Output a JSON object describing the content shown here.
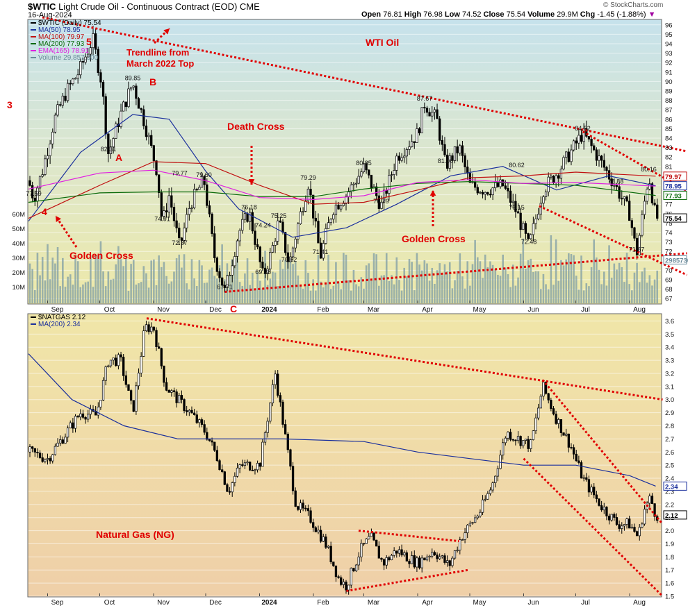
{
  "header": {
    "symbol": "$WTIC",
    "description": "Light Crude Oil - Continuous Contract (EOD)",
    "exchange": "CME",
    "date": "16-Aug-2024",
    "open_label": "Open",
    "open": "76.81",
    "high_label": "High",
    "high": "76.98",
    "low_label": "Low",
    "low": "74.52",
    "close_label": "Close",
    "close": "75.54",
    "volume_label": "Volume",
    "volume": "29.9M",
    "chg_label": "Chg",
    "chg": "-1.45 (-1.88%)",
    "watermark": "© StockCharts.com"
  },
  "top_legend": [
    {
      "label": "$WTIC (Daily) 75.54",
      "color": "#000000"
    },
    {
      "label": "MA(50) 78.95",
      "color": "#1a2f9c"
    },
    {
      "label": "MA(100) 79.97",
      "color": "#c01010"
    },
    {
      "label": "MA(200) 77.93",
      "color": "#0a6a0a"
    },
    {
      "label": "EMA(165) 78.91",
      "color": "#e020e0"
    },
    {
      "label": "Volume 29,857,300",
      "color": "#6a8a9a"
    }
  ],
  "bottom_legend": [
    {
      "label": "$NATGAS 2.12",
      "color": "#000000"
    },
    {
      "label": "MA(200) 2.34",
      "color": "#1a2f9c"
    }
  ],
  "annotations": {
    "wti_title": "WTI Oil",
    "trendline": "Trendline from\nMarch 2022 Top",
    "death_cross": "Death Cross",
    "golden_cross_1": "Golden Cross",
    "golden_cross_2": "Golden Cross",
    "wave_3": "3",
    "wave_4": "4",
    "wave_5": "5",
    "wave_a": "A",
    "wave_b": "B",
    "wave_c": "C",
    "natgas_title": "Natural Gas (NG)"
  },
  "chart_data": [
    {
      "type": "candlestick",
      "title": "$WTIC Light Crude Oil - Continuous Contract (EOD)",
      "x_labels": [
        "Sep",
        "Oct",
        "Nov",
        "Dec",
        "2024",
        "Feb",
        "Mar",
        "Apr",
        "May",
        "Jun",
        "Jul",
        "Aug"
      ],
      "ylim": [
        66.5,
        96.5
      ],
      "y_ticks": [
        67,
        68,
        69,
        70,
        71,
        72,
        73,
        74,
        75,
        76,
        77,
        78,
        79,
        80,
        81,
        82,
        83,
        84,
        85,
        86,
        87,
        88,
        89,
        90,
        91,
        92,
        93,
        94,
        95,
        96
      ],
      "volume_ticks": [
        "10M",
        "20M",
        "30M",
        "40M",
        "50M",
        "60M"
      ],
      "last_price": 75.54,
      "right_tags": [
        {
          "label": "79.97",
          "value": 79.97,
          "color": "#c01010"
        },
        {
          "label": "78.95",
          "value": 78.95,
          "color": "#1a2f9c"
        },
        {
          "label": "77.93",
          "value": 77.93,
          "color": "#0a6a0a"
        },
        {
          "label": "75.54",
          "value": 75.54,
          "color": "#000000"
        },
        {
          "label": "29857300",
          "value": 71.1,
          "color": "#6a8a9a"
        }
      ],
      "price_labels": [
        {
          "label": "77.59",
          "date": "2023-08-24",
          "value": 77.59
        },
        {
          "label": "89.85",
          "date": "2023-10-20",
          "value": 89.85
        },
        {
          "label": "82.31",
          "date": "2023-10-06",
          "value": 82.31
        },
        {
          "label": "79.77",
          "date": "2023-11-16",
          "value": 79.77
        },
        {
          "label": "79.60",
          "date": "2023-11-30",
          "value": 79.6
        },
        {
          "label": "74.91",
          "date": "2023-11-06",
          "value": 74.91
        },
        {
          "label": "72.37",
          "date": "2023-11-16",
          "value": 72.37
        },
        {
          "label": "76.18",
          "date": "2023-12-26",
          "value": 76.18
        },
        {
          "label": "74.24",
          "date": "2024-01-03",
          "value": 74.24
        },
        {
          "label": "75.25",
          "date": "2024-01-12",
          "value": 75.25
        },
        {
          "label": "69.28",
          "date": "2024-01-03",
          "value": 69.28
        },
        {
          "label": "70.62",
          "date": "2024-01-18",
          "value": 70.62
        },
        {
          "label": "67.71",
          "date": "2023-12-12",
          "value": 67.71
        },
        {
          "label": "79.29",
          "date": "2024-01-29",
          "value": 79.29
        },
        {
          "label": "71.41",
          "date": "2024-02-05",
          "value": 71.41
        },
        {
          "label": "80.85",
          "date": "2024-03-01",
          "value": 80.85
        },
        {
          "label": "76.79",
          "date": "2024-03-11",
          "value": 76.79
        },
        {
          "label": "87.67",
          "date": "2024-04-05",
          "value": 87.67
        },
        {
          "label": "81.06",
          "date": "2024-04-17",
          "value": 81.06
        },
        {
          "label": "80.62",
          "date": "2024-05-28",
          "value": 80.62
        },
        {
          "label": "76.15",
          "date": "2024-05-28",
          "value": 76.15
        },
        {
          "label": "72.48",
          "date": "2024-06-04",
          "value": 72.48
        },
        {
          "label": "84.52",
          "date": "2024-07-05",
          "value": 84.52
        },
        {
          "label": "78.88",
          "date": "2024-07-24",
          "value": 78.88
        },
        {
          "label": "80.16",
          "date": "2024-08-12",
          "value": 80.16
        },
        {
          "label": "71.67",
          "date": "2024-08-05",
          "value": 71.67
        }
      ],
      "path_points": [
        [
          "2023-08-21",
          79.5
        ],
        [
          "2023-08-24",
          77.59
        ],
        [
          "2023-08-29",
          80.5
        ],
        [
          "2023-09-05",
          86.0
        ],
        [
          "2023-09-12",
          89.0
        ],
        [
          "2023-09-19",
          91.0
        ],
        [
          "2023-09-27",
          94.5
        ],
        [
          "2023-10-02",
          90.0
        ],
        [
          "2023-10-06",
          82.31
        ],
        [
          "2023-10-13",
          86.5
        ],
        [
          "2023-10-20",
          89.85
        ],
        [
          "2023-10-27",
          85.5
        ],
        [
          "2023-11-03",
          80.5
        ],
        [
          "2023-11-06",
          74.91
        ],
        [
          "2023-11-10",
          78.0
        ],
        [
          "2023-11-16",
          72.37
        ],
        [
          "2023-11-22",
          77.0
        ],
        [
          "2023-11-30",
          79.6
        ],
        [
          "2023-12-06",
          71.5
        ],
        [
          "2023-12-12",
          67.71
        ],
        [
          "2023-12-20",
          74.0
        ],
        [
          "2023-12-26",
          76.18
        ],
        [
          "2024-01-03",
          69.28
        ],
        [
          "2024-01-08",
          72.0
        ],
        [
          "2024-01-12",
          75.25
        ],
        [
          "2024-01-18",
          70.62
        ],
        [
          "2024-01-24",
          75.5
        ],
        [
          "2024-01-29",
          79.29
        ],
        [
          "2024-02-05",
          71.41
        ],
        [
          "2024-02-12",
          76.5
        ],
        [
          "2024-02-20",
          78.0
        ],
        [
          "2024-03-01",
          80.85
        ],
        [
          "2024-03-11",
          76.79
        ],
        [
          "2024-03-20",
          82.0
        ],
        [
          "2024-04-01",
          84.5
        ],
        [
          "2024-04-05",
          87.67
        ],
        [
          "2024-04-12",
          86.0
        ],
        [
          "2024-04-17",
          81.06
        ],
        [
          "2024-04-25",
          83.0
        ],
        [
          "2024-05-01",
          79.0
        ],
        [
          "2024-05-10",
          78.5
        ],
        [
          "2024-05-20",
          79.0
        ],
        [
          "2024-05-28",
          76.15
        ],
        [
          "2024-06-04",
          72.48
        ],
        [
          "2024-06-12",
          78.5
        ],
        [
          "2024-06-21",
          80.5
        ],
        [
          "2024-07-05",
          84.52
        ],
        [
          "2024-07-12",
          82.5
        ],
        [
          "2024-07-24",
          78.88
        ],
        [
          "2024-08-01",
          76.0
        ],
        [
          "2024-08-05",
          71.67
        ],
        [
          "2024-08-09",
          76.5
        ],
        [
          "2024-08-12",
          80.16
        ],
        [
          "2024-08-16",
          75.54
        ]
      ],
      "moving_averages": {
        "MA50": [
          [
            "2023-08-21",
            75.2
          ],
          [
            "2023-09-20",
            82.5
          ],
          [
            "2023-10-20",
            86.5
          ],
          [
            "2023-11-10",
            86.0
          ],
          [
            "2023-12-01",
            80.5
          ],
          [
            "2023-12-20",
            76.5
          ],
          [
            "2024-01-20",
            73.5
          ],
          [
            "2024-02-20",
            74.5
          ],
          [
            "2024-03-20",
            77.0
          ],
          [
            "2024-04-20",
            80.0
          ],
          [
            "2024-05-20",
            81.0
          ],
          [
            "2024-06-20",
            78.5
          ],
          [
            "2024-07-20",
            80.0
          ],
          [
            "2024-08-16",
            78.95
          ]
        ],
        "MA100": [
          [
            "2023-08-21",
            75.5
          ],
          [
            "2023-10-01",
            79.0
          ],
          [
            "2023-11-01",
            81.5
          ],
          [
            "2023-12-01",
            81.3
          ],
          [
            "2024-01-01",
            79.0
          ],
          [
            "2024-02-01",
            77.0
          ],
          [
            "2024-03-01",
            77.2
          ],
          [
            "2024-04-01",
            78.5
          ],
          [
            "2024-05-01",
            79.8
          ],
          [
            "2024-06-01",
            80.0
          ],
          [
            "2024-07-01",
            80.4
          ],
          [
            "2024-08-16",
            79.97
          ]
        ],
        "MA200": [
          [
            "2023-08-21",
            77.2
          ],
          [
            "2023-10-01",
            78.2
          ],
          [
            "2023-11-01",
            78.3
          ],
          [
            "2023-12-01",
            78.3
          ],
          [
            "2024-01-01",
            77.8
          ],
          [
            "2024-02-01",
            77.8
          ],
          [
            "2024-03-01",
            78.6
          ],
          [
            "2024-04-01",
            79.2
          ],
          [
            "2024-05-01",
            79.4
          ],
          [
            "2024-06-01",
            79.2
          ],
          [
            "2024-07-01",
            79.0
          ],
          [
            "2024-08-16",
            77.93
          ]
        ],
        "EMA165": [
          [
            "2023-08-21",
            78.6
          ],
          [
            "2023-10-01",
            80.3
          ],
          [
            "2023-11-01",
            80.6
          ],
          [
            "2023-12-01",
            79.5
          ],
          [
            "2024-01-01",
            77.7
          ],
          [
            "2024-02-01",
            77.5
          ],
          [
            "2024-03-01",
            77.9
          ],
          [
            "2024-04-01",
            79.3
          ],
          [
            "2024-05-01",
            79.6
          ],
          [
            "2024-06-01",
            79.2
          ],
          [
            "2024-07-01",
            79.3
          ],
          [
            "2024-08-16",
            78.91
          ]
        ]
      },
      "trendlines": [
        {
          "from": [
            "2023-08-29",
            96.8
          ],
          "to": [
            "2024-08-20",
            82.6
          ]
        },
        {
          "from": [
            "2023-12-12",
            67.71
          ],
          "to": [
            "2024-08-20",
            71.8
          ]
        },
        {
          "from": [
            "2024-07-05",
            84.7
          ],
          "to": [
            "2024-08-20",
            78.4
          ]
        },
        {
          "from": [
            "2024-06-10",
            76.8
          ],
          "to": [
            "2024-08-20",
            69.5
          ]
        }
      ]
    },
    {
      "type": "candlestick",
      "title": "$NATGAS",
      "x_labels": [
        "Sep",
        "Oct",
        "Nov",
        "Dec",
        "2024",
        "Feb",
        "Mar",
        "Apr",
        "May",
        "Jun",
        "Jul",
        "Aug"
      ],
      "ylim": [
        1.5,
        3.65
      ],
      "y_ticks": [
        1.5,
        1.6,
        1.7,
        1.8,
        1.9,
        2.0,
        2.1,
        2.2,
        2.3,
        2.4,
        2.5,
        2.6,
        2.7,
        2.8,
        2.9,
        3.0,
        3.1,
        3.2,
        3.3,
        3.4,
        3.5,
        3.6
      ],
      "last_price": 2.12,
      "right_tags": [
        {
          "label": "2.34",
          "value": 2.34,
          "color": "#1a2f9c"
        },
        {
          "label": "2.12",
          "value": 2.12,
          "color": "#000000"
        }
      ],
      "path_points": [
        [
          "2023-08-21",
          2.6
        ],
        [
          "2023-09-01",
          2.55
        ],
        [
          "2023-09-12",
          2.75
        ],
        [
          "2023-09-20",
          2.9
        ],
        [
          "2023-09-29",
          2.88
        ],
        [
          "2023-10-06",
          3.3
        ],
        [
          "2023-10-13",
          3.3
        ],
        [
          "2023-10-20",
          2.9
        ],
        [
          "2023-10-27",
          3.55
        ],
        [
          "2023-11-01",
          3.55
        ],
        [
          "2023-11-08",
          3.1
        ],
        [
          "2023-11-15",
          3.0
        ],
        [
          "2023-11-22",
          2.9
        ],
        [
          "2023-12-01",
          2.75
        ],
        [
          "2023-12-08",
          2.55
        ],
        [
          "2023-12-14",
          2.3
        ],
        [
          "2023-12-21",
          2.5
        ],
        [
          "2024-01-01",
          2.5
        ],
        [
          "2024-01-10",
          3.2
        ],
        [
          "2024-01-16",
          2.7
        ],
        [
          "2024-01-22",
          2.2
        ],
        [
          "2024-01-30",
          2.1
        ],
        [
          "2024-02-08",
          1.9
        ],
        [
          "2024-02-16",
          1.62
        ],
        [
          "2024-02-20",
          1.58
        ],
        [
          "2024-02-28",
          1.85
        ],
        [
          "2024-03-05",
          1.95
        ],
        [
          "2024-03-12",
          1.75
        ],
        [
          "2024-03-20",
          1.85
        ],
        [
          "2024-04-01",
          1.75
        ],
        [
          "2024-04-10",
          1.85
        ],
        [
          "2024-04-19",
          1.73
        ],
        [
          "2024-04-26",
          1.95
        ],
        [
          "2024-05-07",
          2.15
        ],
        [
          "2024-05-14",
          2.35
        ],
        [
          "2024-05-22",
          2.75
        ],
        [
          "2024-05-29",
          2.7
        ],
        [
          "2024-06-05",
          2.65
        ],
        [
          "2024-06-12",
          3.1
        ],
        [
          "2024-06-20",
          2.85
        ],
        [
          "2024-06-28",
          2.65
        ],
        [
          "2024-07-05",
          2.4
        ],
        [
          "2024-07-15",
          2.2
        ],
        [
          "2024-07-25",
          2.05
        ],
        [
          "2024-08-01",
          2.05
        ],
        [
          "2024-08-06",
          1.95
        ],
        [
          "2024-08-09",
          2.15
        ],
        [
          "2024-08-13",
          2.25
        ],
        [
          "2024-08-16",
          2.12
        ]
      ],
      "moving_averages": {
        "MA200": [
          [
            "2023-08-21",
            3.35
          ],
          [
            "2023-09-15",
            3.0
          ],
          [
            "2023-10-15",
            2.8
          ],
          [
            "2023-11-15",
            2.7
          ],
          [
            "2023-12-15",
            2.7
          ],
          [
            "2024-01-15",
            2.7
          ],
          [
            "2024-03-01",
            2.68
          ],
          [
            "2024-04-01",
            2.6
          ],
          [
            "2024-05-01",
            2.55
          ],
          [
            "2024-06-01",
            2.5
          ],
          [
            "2024-07-01",
            2.5
          ],
          [
            "2024-08-01",
            2.42
          ],
          [
            "2024-08-16",
            2.34
          ]
        ]
      },
      "trendlines": [
        {
          "from": [
            "2023-10-28",
            3.62
          ],
          "to": [
            "2024-08-20",
            3.0
          ]
        },
        {
          "from": [
            "2024-06-12",
            3.15
          ],
          "to": [
            "2024-08-20",
            2.05
          ]
        },
        {
          "from": [
            "2024-06-01",
            2.55
          ],
          "to": [
            "2024-08-20",
            1.5
          ]
        },
        {
          "from": [
            "2024-02-20",
            1.54
          ],
          "to": [
            "2024-04-30",
            1.7
          ]
        },
        {
          "from": [
            "2024-02-27",
            2.0
          ],
          "to": [
            "2024-04-25",
            1.92
          ]
        }
      ]
    }
  ]
}
